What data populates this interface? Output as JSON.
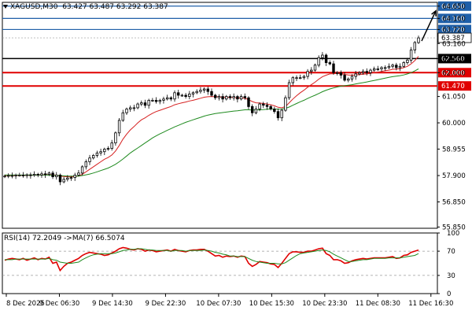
{
  "header": {
    "symbol": "XAGUSD,M30",
    "ohlc": "63.427 63.487 63.292 63.387"
  },
  "rsi_panel": {
    "label": "RSI(14) 72.2049",
    "ma_label": "->MA(7) 66.5074"
  },
  "colors": {
    "candle": "#000000",
    "ma_fast": "#d62020",
    "ma_slow": "#1e8a1e",
    "rsi_line": "#e00000",
    "rsi_ma": "#1e8a1e",
    "resistance_line": "#1f5fa8",
    "support_line": "#e00000",
    "pivot_line": "#000000",
    "current_price_box": "#ffffff"
  },
  "chart_data": [
    {
      "type": "candlestick",
      "instrument": "XAGUSD",
      "timeframe": "M30",
      "title": "XAGUSD,M30",
      "ylim": [
        55.8,
        64.8
      ],
      "y_ticks": [
        "55.850",
        "56.850",
        "57.900",
        "58.955",
        "60.000",
        "61.050",
        "62.000",
        "62.560",
        "63.160",
        "63.720",
        "64.160",
        "64.650"
      ],
      "x_tick_labels": [
        "8 Dec 2025",
        "9 Dec 06:30",
        "9 Dec 14:30",
        "9 Dec 22:30",
        "10 Dec 07:30",
        "10 Dec 15:30",
        "10 Dec 23:30",
        "11 Dec 08:30",
        "11 Dec 16:30"
      ],
      "horizontal_levels": [
        {
          "value": 64.65,
          "label": "64.650",
          "kind": "resistance"
        },
        {
          "value": 64.16,
          "label": "64.160",
          "kind": "resistance"
        },
        {
          "value": 63.72,
          "label": "63.720",
          "kind": "resistance"
        },
        {
          "value": 62.56,
          "label": "62.560",
          "kind": "pivot"
        },
        {
          "value": 62.0,
          "label": "62.000",
          "kind": "support"
        },
        {
          "value": 61.47,
          "label": "61.470",
          "kind": "support"
        }
      ],
      "current_price": {
        "value": 63.387,
        "label": "63.387"
      },
      "series": [
        {
          "name": "price",
          "kind": "candles",
          "close": [
            57.88,
            57.9,
            57.9,
            57.92,
            57.92,
            57.9,
            57.93,
            57.91,
            57.95,
            57.92,
            57.97,
            57.94,
            58.0,
            57.85,
            57.92,
            57.65,
            57.75,
            57.8,
            57.82,
            57.92,
            58.0,
            58.25,
            58.45,
            58.6,
            58.7,
            58.8,
            58.85,
            58.95,
            58.98,
            59.2,
            59.6,
            60.1,
            60.4,
            60.55,
            60.6,
            60.6,
            60.75,
            60.8,
            60.7,
            60.9,
            60.9,
            60.85,
            60.9,
            60.95,
            61.0,
            60.95,
            61.2,
            61.1,
            61.1,
            61.05,
            61.15,
            61.2,
            61.25,
            61.3,
            61.35,
            61.25,
            61.1,
            61.0,
            61.05,
            60.95,
            61.05,
            61.0,
            61.05,
            60.95,
            61.05,
            61.0,
            60.65,
            60.4,
            60.55,
            60.75,
            60.7,
            60.65,
            60.55,
            60.45,
            60.2,
            60.5,
            61.0,
            61.6,
            61.8,
            61.8,
            61.8,
            61.85,
            62.05,
            62.1,
            62.3,
            62.6,
            62.7,
            62.4,
            62.35,
            62.0,
            62.0,
            61.9,
            61.7,
            61.75,
            61.85,
            61.95,
            62.0,
            62.05,
            62.0,
            62.1,
            62.15,
            62.15,
            62.2,
            62.2,
            62.25,
            62.3,
            62.2,
            62.25,
            62.4,
            62.5,
            62.9,
            63.2,
            63.387
          ]
        },
        {
          "name": "MA fast",
          "kind": "line",
          "values": [
            57.9,
            57.9,
            57.9,
            57.9,
            57.91,
            57.91,
            57.91,
            57.91,
            57.92,
            57.92,
            57.93,
            57.93,
            57.94,
            57.92,
            57.92,
            57.88,
            57.86,
            57.85,
            57.85,
            57.86,
            57.88,
            57.95,
            58.05,
            58.15,
            58.25,
            58.35,
            58.45,
            58.55,
            58.62,
            58.72,
            58.88,
            59.1,
            59.35,
            59.55,
            59.72,
            59.85,
            60.0,
            60.12,
            60.2,
            60.3,
            60.38,
            60.45,
            60.5,
            60.55,
            60.6,
            60.65,
            60.72,
            60.76,
            60.8,
            60.83,
            60.87,
            60.9,
            60.94,
            60.98,
            61.02,
            61.04,
            61.05,
            61.04,
            61.04,
            61.02,
            61.02,
            61.01,
            61.01,
            60.99,
            61.0,
            60.98,
            60.92,
            60.85,
            60.8,
            60.79,
            60.77,
            60.75,
            60.72,
            60.68,
            60.62,
            60.6,
            60.65,
            60.8,
            60.95,
            61.08,
            61.2,
            61.3,
            61.42,
            61.52,
            61.62,
            61.74,
            61.84,
            61.9,
            61.95,
            61.96,
            61.97,
            61.96,
            61.93,
            61.91,
            61.9,
            61.91,
            61.92,
            61.94,
            61.95,
            61.97,
            62.0,
            62.02,
            62.05,
            62.08,
            62.1,
            62.13,
            62.14,
            62.16,
            62.2,
            62.25,
            62.35,
            62.48,
            62.65
          ]
        },
        {
          "name": "MA slow",
          "kind": "line",
          "values": [
            57.92,
            57.92,
            57.92,
            57.92,
            57.92,
            57.92,
            57.92,
            57.92,
            57.92,
            57.92,
            57.92,
            57.92,
            57.92,
            57.91,
            57.91,
            57.9,
            57.89,
            57.88,
            57.88,
            57.88,
            57.88,
            57.9,
            57.93,
            57.96,
            58.0,
            58.05,
            58.1,
            58.15,
            58.2,
            58.27,
            58.35,
            58.45,
            58.56,
            58.68,
            58.8,
            58.9,
            59.0,
            59.1,
            59.2,
            59.3,
            59.4,
            59.48,
            59.56,
            59.63,
            59.7,
            59.77,
            59.84,
            59.9,
            59.96,
            60.02,
            60.07,
            60.12,
            60.17,
            60.22,
            60.27,
            60.31,
            60.34,
            60.37,
            60.39,
            60.41,
            60.43,
            60.45,
            60.47,
            60.48,
            60.5,
            60.52,
            60.52,
            60.51,
            60.51,
            60.52,
            60.53,
            60.54,
            60.55,
            60.55,
            60.54,
            60.55,
            60.58,
            60.63,
            60.7,
            60.77,
            60.84,
            60.9,
            60.97,
            61.04,
            61.1,
            61.17,
            61.24,
            61.3,
            61.35,
            61.39,
            61.43,
            61.46,
            61.48,
            61.5,
            61.52,
            61.55,
            61.58,
            61.6,
            61.63,
            61.66,
            61.69,
            61.72,
            61.75,
            61.78,
            61.81,
            61.84,
            61.86,
            61.88,
            61.91,
            61.95,
            62.0,
            62.07,
            62.15
          ]
        }
      ]
    },
    {
      "type": "line",
      "title": "RSI(14) 72.2049",
      "ylim": [
        0,
        100
      ],
      "y_ticks": [
        "100",
        "70",
        "30",
        "0"
      ],
      "grid_levels": [
        70,
        30
      ],
      "series": [
        {
          "name": "RSI(14)",
          "values": [
            55,
            57,
            58,
            57,
            56,
            58,
            55,
            57,
            59,
            56,
            58,
            57,
            60,
            50,
            52,
            38,
            45,
            50,
            52,
            55,
            58,
            63,
            66,
            68,
            67,
            66,
            65,
            63,
            64,
            67,
            70,
            74,
            76,
            75,
            73,
            72,
            74,
            73,
            70,
            72,
            71,
            69,
            70,
            71,
            72,
            70,
            73,
            71,
            70,
            69,
            71,
            72,
            72,
            73,
            73,
            70,
            66,
            62,
            63,
            60,
            62,
            61,
            62,
            60,
            62,
            61,
            50,
            45,
            48,
            53,
            52,
            51,
            49,
            48,
            43,
            50,
            58,
            66,
            69,
            69,
            68,
            68,
            70,
            70,
            72,
            74,
            75,
            66,
            63,
            56,
            56,
            54,
            50,
            51,
            54,
            56,
            57,
            58,
            57,
            58,
            59,
            59,
            59,
            59,
            60,
            61,
            58,
            59,
            63,
            64,
            68,
            70,
            72
          ]
        },
        {
          "name": "MA(7)",
          "values": [
            56,
            56,
            56,
            57,
            57,
            57,
            57,
            57,
            57,
            57,
            57,
            57,
            58,
            56,
            55,
            52,
            51,
            50,
            50,
            51,
            52,
            56,
            59,
            62,
            64,
            65,
            66,
            66,
            66,
            66,
            67,
            69,
            71,
            72,
            73,
            73,
            74,
            74,
            73,
            72,
            72,
            71,
            71,
            71,
            71,
            70,
            71,
            71,
            71,
            70,
            71,
            71,
            71,
            71,
            72,
            71,
            70,
            68,
            67,
            65,
            64,
            62,
            62,
            61,
            61,
            61,
            58,
            55,
            53,
            52,
            51,
            50,
            50,
            50,
            49,
            49,
            51,
            55,
            59,
            63,
            66,
            67,
            68,
            69,
            70,
            71,
            72,
            71,
            69,
            65,
            62,
            59,
            56,
            53,
            53,
            54,
            55,
            56,
            56,
            57,
            58,
            58,
            58,
            58,
            59,
            59,
            59,
            59,
            60,
            61,
            62,
            63,
            66
          ]
        }
      ]
    }
  ]
}
